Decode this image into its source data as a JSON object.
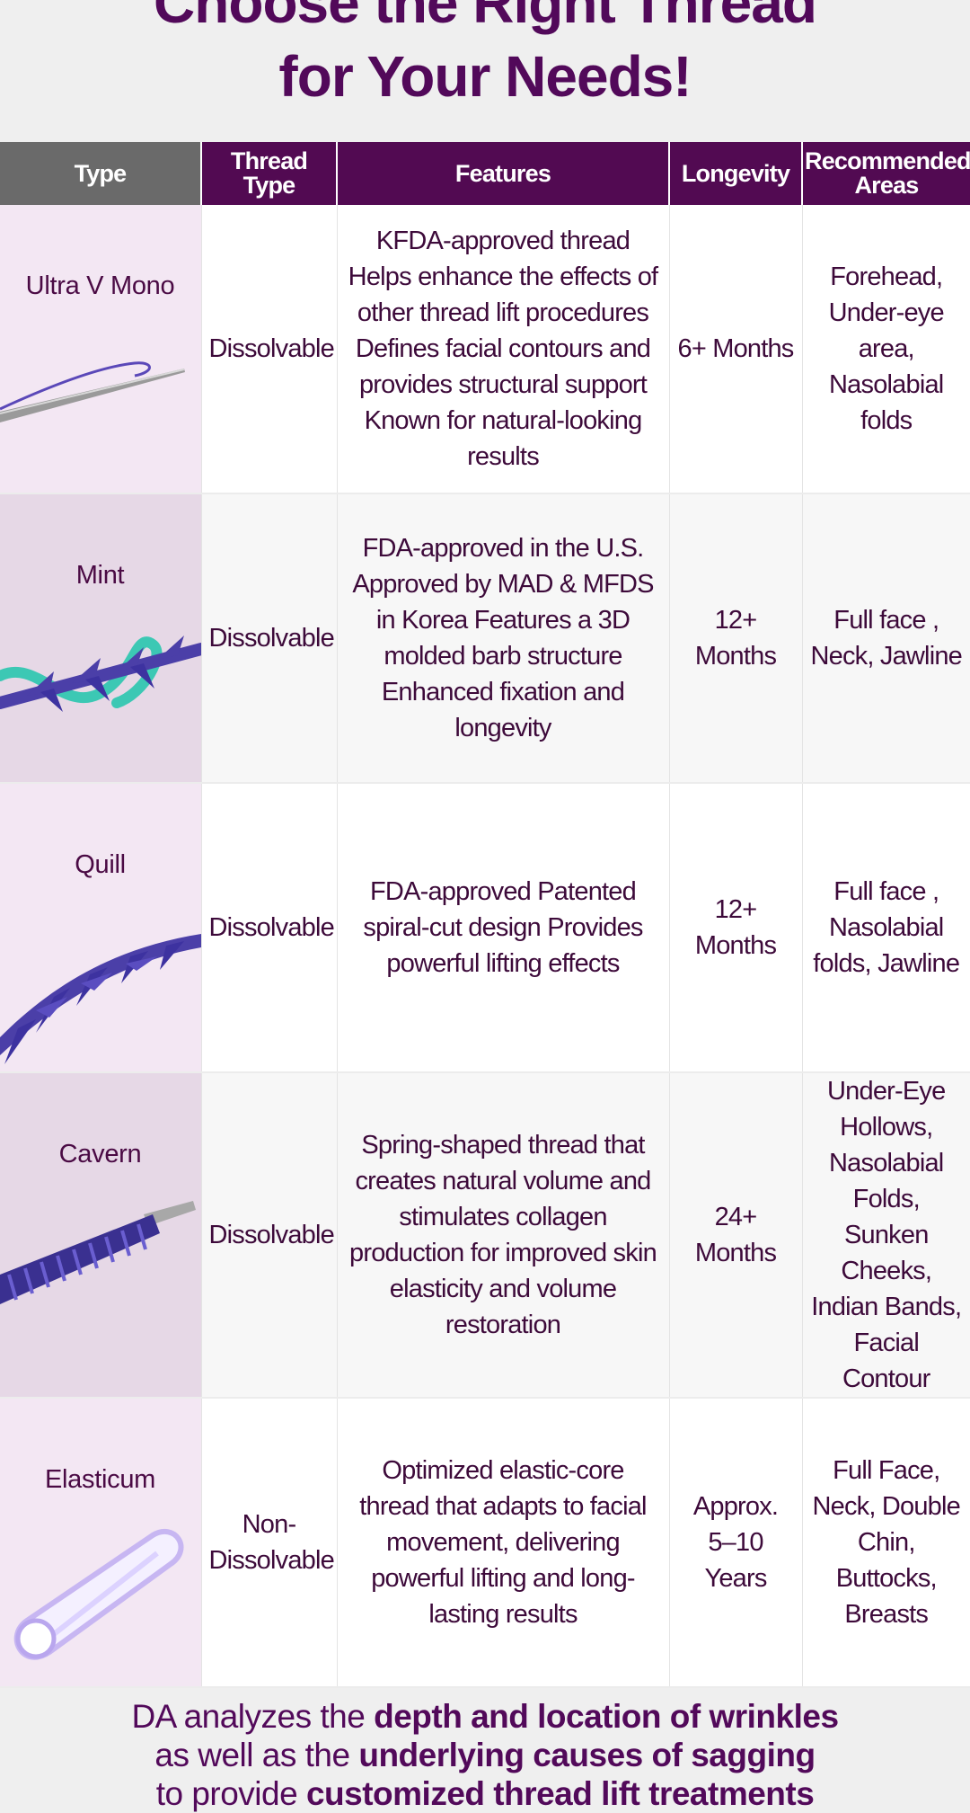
{
  "heading": {
    "line1": "Choose the Right Thread",
    "line2": "for Your Needs!"
  },
  "table": {
    "headers": {
      "type": "Type",
      "thread_type": "Thread Type",
      "features": "Features",
      "longevity": "Longevity",
      "areas": "Recommended Areas"
    },
    "rows": [
      {
        "name": "Ultra V Mono",
        "icon": "mono-thread-needle-icon",
        "thread_type": "Dissolvable",
        "features": "KFDA-approved thread Helps enhance the effects of other thread lift procedures Defines facial contours and provides structural support Known for natural-looking results",
        "longevity": "6+ Months",
        "areas": "Forehead, Under-eye area, Nasolabial folds"
      },
      {
        "name": "Mint",
        "icon": "barbed-thread-icon",
        "thread_type": "Dissolvable",
        "features": "FDA-approved in the U.S. Approved by MAD & MFDS in Korea Features a 3D molded barb structure Enhanced fixation and longevity",
        "longevity": "12+ Months",
        "areas": "Full face , Neck, Jawline"
      },
      {
        "name": "Quill",
        "icon": "spiral-cut-thread-icon",
        "thread_type": "Dissolvable",
        "features": "FDA-approved Patented spiral-cut design Provides powerful lifting effects",
        "longevity": "12+ Months",
        "areas": "Full face , Nasolabial folds, Jawline"
      },
      {
        "name": "Cavern",
        "icon": "spring-thread-icon",
        "thread_type": "Dissolvable",
        "features": "Spring-shaped thread that creates natural volume and stimulates collagen production for improved skin elasticity and volume restoration",
        "longevity": "24+ Months",
        "areas": "Under-Eye Hollows, Nasolabial Folds, Sunken Cheeks, Indian Bands, Facial Contour"
      },
      {
        "name": "Elasticum",
        "icon": "elastic-core-thread-icon",
        "thread_type": "Non-Dissolvable",
        "features": "Optimized elastic-core thread that adapts to facial movement, delivering powerful lifting and long-lasting results",
        "longevity": "Approx. 5–10 Years",
        "areas": "Full Face, Neck, Double Chin, Buttocks, Breasts"
      }
    ]
  },
  "footer": {
    "line1_plain": "DA analyzes the ",
    "line1_bold": "depth and location of wrinkles",
    "line2_plain": "as well as the ",
    "line2_bold": "underlying causes of sagging",
    "line3_plain": "to provide ",
    "line3_bold": "customized thread lift treatments"
  },
  "colors": {
    "brand_purple": "#52095a",
    "header_gray": "#6a6a6a",
    "thread_blue": "#4b3fa8",
    "thread_teal": "#3cc8b4"
  }
}
